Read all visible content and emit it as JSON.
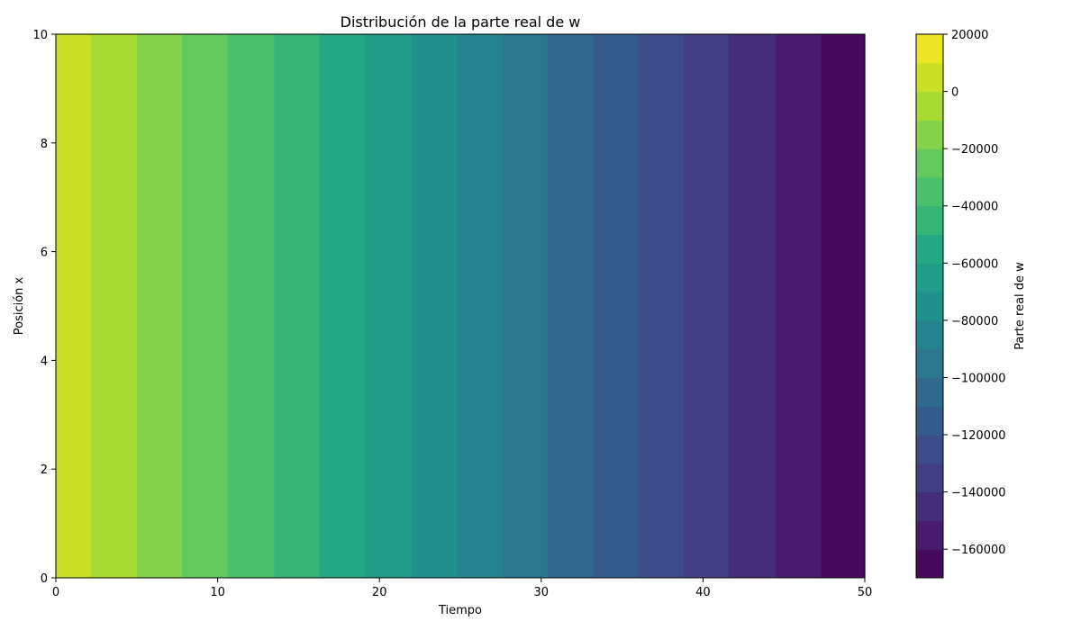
{
  "chart_data": {
    "type": "heatmap",
    "subtype": "filled-contour",
    "title": "Distribución de la parte real de w",
    "xlabel": "Tiempo",
    "ylabel": "Posición x",
    "xlim": [
      0,
      50
    ],
    "ylim": [
      0,
      10
    ],
    "x_ticks": [
      0,
      10,
      20,
      30,
      40,
      50
    ],
    "y_ticks": [
      0,
      2,
      4,
      6,
      8,
      10
    ],
    "colorbar": {
      "label": "Parte real de w",
      "min": -170000,
      "max": 20000,
      "ticks": [
        20000,
        0,
        -20000,
        -40000,
        -60000,
        -80000,
        -100000,
        -120000,
        -140000,
        -160000
      ],
      "tick_labels": [
        "20000",
        "0",
        "−20000",
        "−40000",
        "−60000",
        "−80000",
        "−100000",
        "−120000",
        "−140000",
        "−160000"
      ]
    },
    "colormap": "viridis",
    "level_step": 10000,
    "band_boundaries_x": [
      0,
      2.2,
      5.0,
      7.8,
      10.6,
      13.5,
      16.3,
      19.1,
      22.0,
      24.8,
      27.6,
      30.4,
      33.2,
      36.0,
      38.8,
      41.6,
      44.5,
      47.3,
      50
    ],
    "band_values": [
      5000,
      -5000,
      -15000,
      -25000,
      -35000,
      -45000,
      -55000,
      -65000,
      -75000,
      -85000,
      -95000,
      -105000,
      -115000,
      -125000,
      -135000,
      -145000,
      -155000,
      -165000
    ],
    "grid": false
  }
}
